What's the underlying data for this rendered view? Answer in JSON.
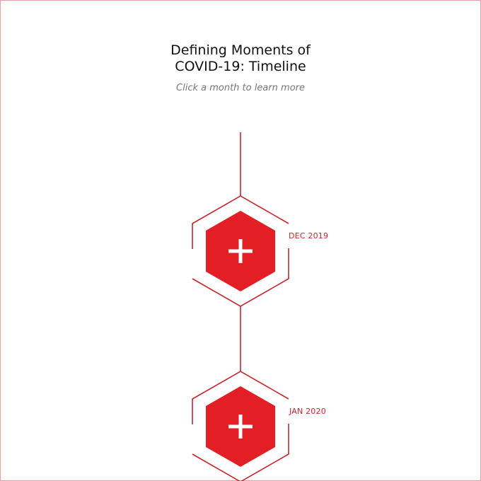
{
  "header": {
    "title_line1": "Defining Moments of",
    "title_line2": "COVID-19: Timeline",
    "subtitle": "Click a month to learn more"
  },
  "timeline": {
    "items": [
      {
        "month": "DEC 2019",
        "icon": "plus-icon"
      },
      {
        "month": "JAN 2020",
        "icon": "plus-icon"
      }
    ]
  },
  "colors": {
    "accent": "#e31e25",
    "line": "#c8262d",
    "frame": "#e2a3a7",
    "icon": "#ffffff"
  }
}
